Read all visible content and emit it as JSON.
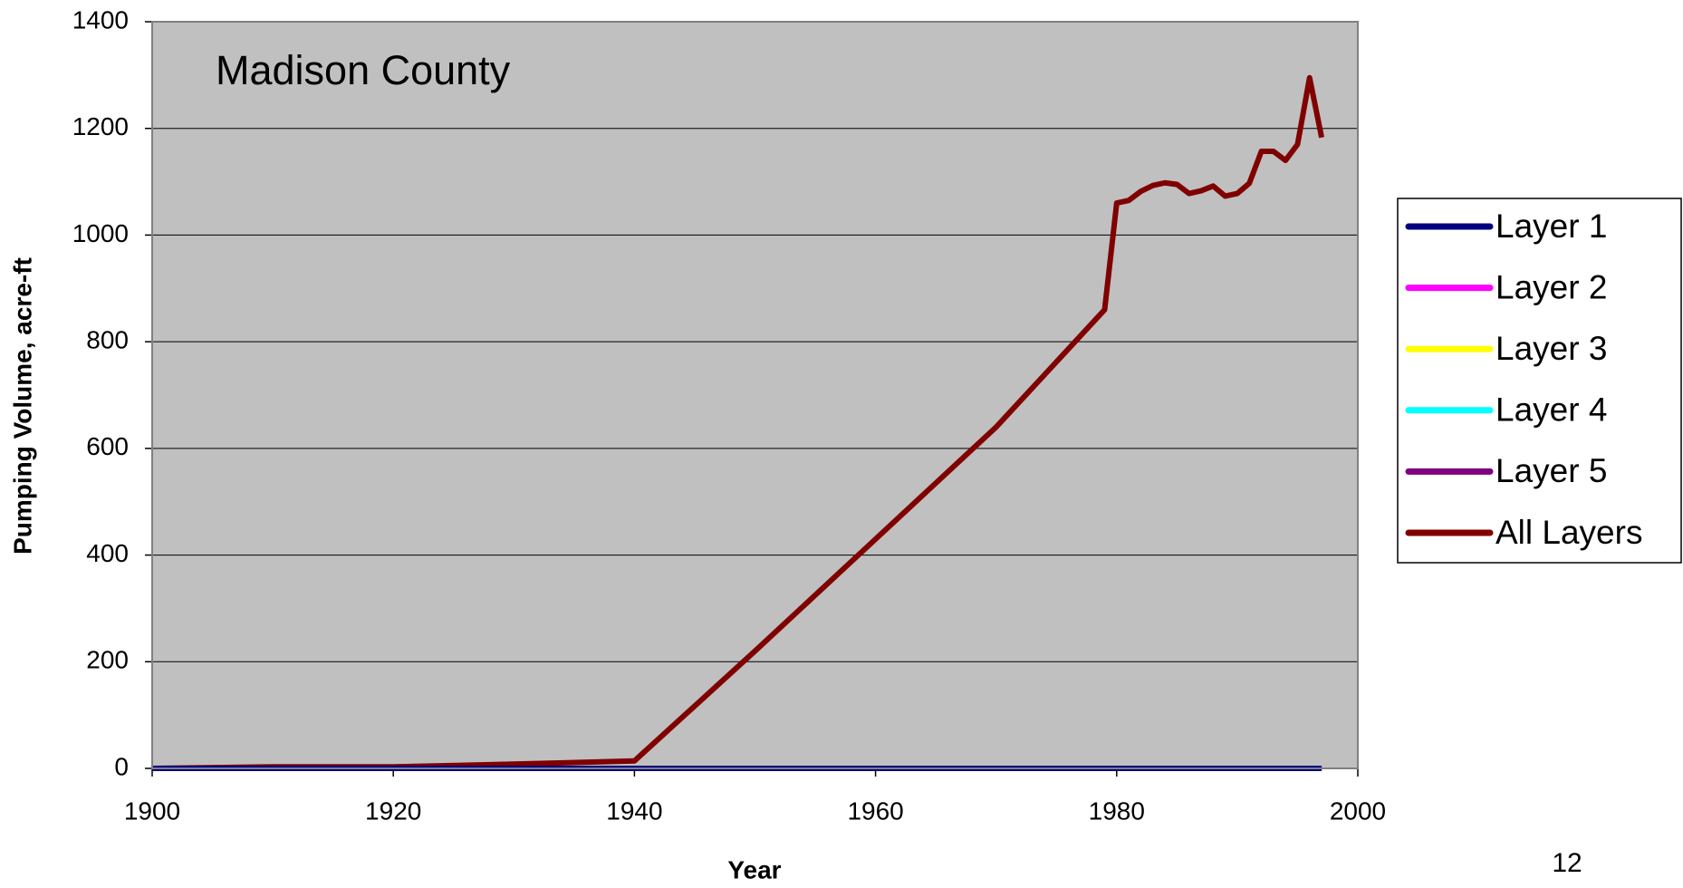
{
  "chart_data": {
    "type": "line",
    "annotation": "Madison County",
    "x_label": "Year",
    "y_label": "Pumping Volume, acre-ft",
    "page_number": "12",
    "plot_background": "#c0c0c0",
    "grid": true,
    "legend": "right",
    "x": [
      1900,
      1910,
      1920,
      1930,
      1940,
      1950,
      1960,
      1970,
      1979,
      1980,
      1981,
      1982,
      1983,
      1984,
      1985,
      1986,
      1987,
      1988,
      1989,
      1990,
      1991,
      1992,
      1993,
      1994,
      1995,
      1996,
      1997
    ],
    "series": [
      {
        "name": "Layer 1",
        "color": "#000080",
        "values": [
          0,
          0,
          0,
          0,
          0,
          0,
          0,
          0,
          0,
          0,
          0,
          0,
          0,
          0,
          0,
          0,
          0,
          0,
          0,
          0,
          0,
          0,
          0,
          0,
          0,
          0,
          0
        ]
      },
      {
        "name": "Layer 2",
        "color": "#ff00ff",
        "values": [
          0,
          0,
          0,
          0,
          0,
          0,
          0,
          0,
          0,
          0,
          0,
          0,
          0,
          0,
          0,
          0,
          0,
          0,
          0,
          0,
          0,
          0,
          0,
          0,
          0,
          0,
          0
        ]
      },
      {
        "name": "Layer 3",
        "color": "#ffff00",
        "values": [
          0,
          0,
          0,
          0,
          0,
          0,
          0,
          0,
          0,
          0,
          0,
          0,
          0,
          0,
          0,
          0,
          0,
          0,
          0,
          0,
          0,
          0,
          0,
          0,
          0,
          0,
          0
        ]
      },
      {
        "name": "Layer 4",
        "color": "#00ffff",
        "values": [
          0,
          0,
          0,
          0,
          0,
          0,
          0,
          0,
          0,
          0,
          0,
          0,
          0,
          0,
          0,
          0,
          0,
          0,
          0,
          0,
          0,
          0,
          0,
          0,
          0,
          0,
          0
        ]
      },
      {
        "name": "Layer 5",
        "color": "#800080",
        "values": [
          0,
          0,
          0,
          0,
          0,
          0,
          0,
          0,
          0,
          0,
          0,
          0,
          0,
          0,
          0,
          0,
          0,
          0,
          0,
          0,
          0,
          0,
          0,
          0,
          0,
          0,
          0
        ]
      },
      {
        "name": "All Layers",
        "color": "#800000",
        "values": [
          0,
          3,
          3,
          8,
          14,
          220,
          430,
          640,
          860,
          1060,
          1065,
          1082,
          1093,
          1098,
          1095,
          1078,
          1083,
          1092,
          1073,
          1078,
          1097,
          1157,
          1157,
          1140,
          1170,
          1295,
          1183
        ]
      }
    ],
    "xlim": [
      1900,
      2000
    ],
    "xticks": [
      1900,
      1920,
      1940,
      1960,
      1980,
      2000
    ],
    "ylim": [
      0,
      1400
    ],
    "yticks": [
      0,
      200,
      400,
      600,
      800,
      1000,
      1200,
      1400
    ]
  }
}
